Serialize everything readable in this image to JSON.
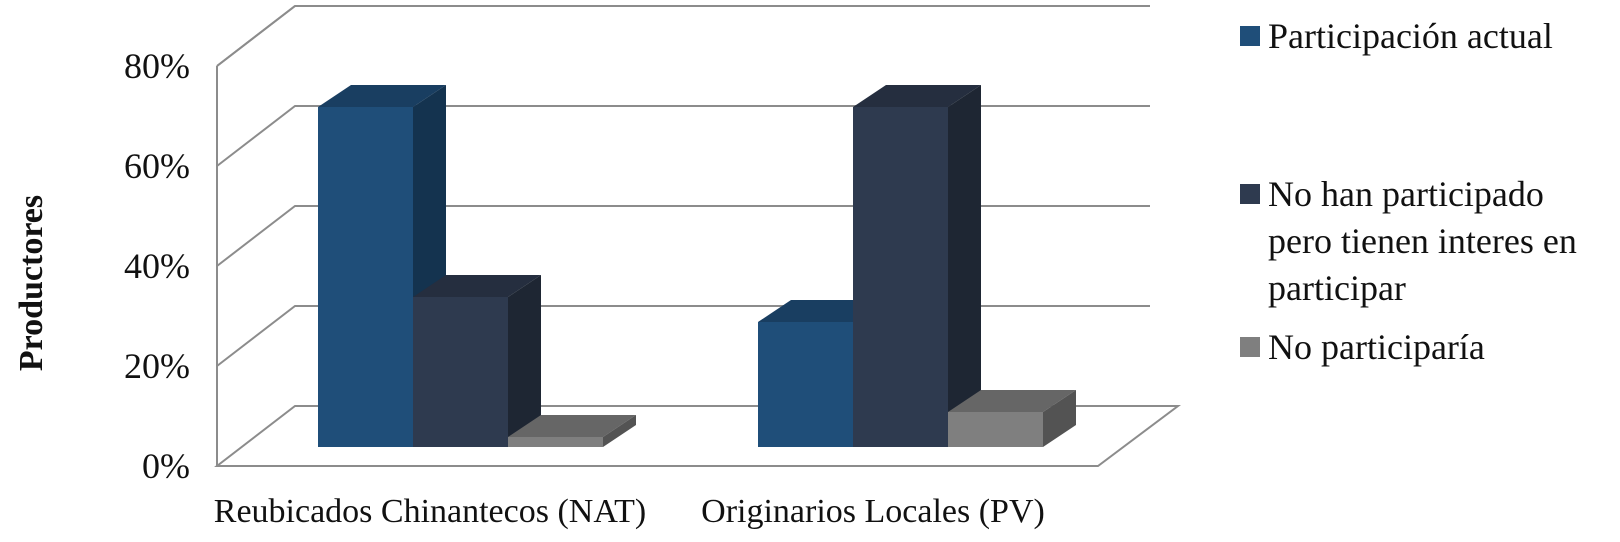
{
  "chart_data": {
    "type": "bar",
    "style": "3d-clustered-column",
    "categories": [
      "Reubicados Chinantecos (NAT)",
      "Originarios Locales (PV)"
    ],
    "series": [
      {
        "name": "Participación actual",
        "color": "#1f4e79",
        "values": [
          0.68,
          0.25
        ]
      },
      {
        "name": "No han participado pero tienen interes en participar",
        "color": "#2e3a4f",
        "values": [
          0.3,
          0.68
        ]
      },
      {
        "name": "No participaría",
        "color": "#7f7f7f",
        "values": [
          0.02,
          0.07
        ]
      }
    ],
    "title": "",
    "xlabel": "",
    "ylabel": "Productores",
    "ylim": [
      0,
      0.8
    ],
    "yticks": [
      "0%",
      "20%",
      "40%",
      "60%",
      "80%"
    ],
    "grid": true,
    "legend_position": "right",
    "legend_lines": [
      [
        "Participación actual"
      ],
      [
        "No han participado",
        "pero tienen interes en",
        "participar"
      ],
      [
        "No participaría"
      ]
    ]
  }
}
